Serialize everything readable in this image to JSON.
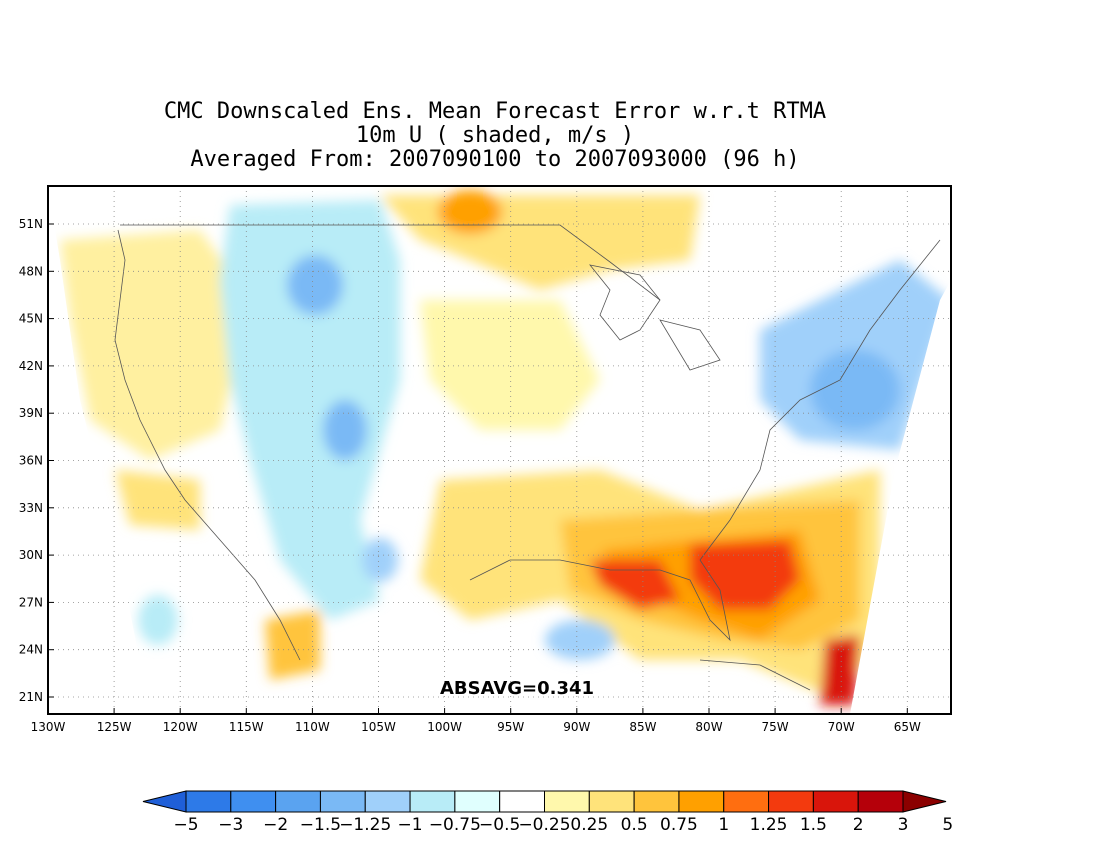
{
  "titles": {
    "line1": "CMC Downscaled Ens. Mean Forecast Error w.r.t RTMA",
    "line2": "10m U ( shaded, m/s )",
    "line3": "Averaged From: 2007090100 to 2007093000 (96 h)"
  },
  "annotation": "ABSAVG=0.341",
  "lat_labels": [
    "51N",
    "48N",
    "45N",
    "42N",
    "39N",
    "36N",
    "33N",
    "30N",
    "27N",
    "24N",
    "21N"
  ],
  "lon_labels": [
    "130W",
    "125W",
    "120W",
    "115W",
    "110W",
    "105W",
    "100W",
    "95W",
    "90W",
    "85W",
    "80W",
    "75W",
    "70W",
    "65W"
  ],
  "colorbar": {
    "labels": [
      "−5",
      "−3",
      "−2",
      "−1.5",
      "−1.25",
      "−1",
      "−0.75",
      "−0.5",
      "−0.25",
      "0.25",
      "0.5",
      "0.75",
      "1",
      "1.25",
      "1.5",
      "2",
      "3",
      "5"
    ],
    "colors": [
      "#1f5fd8",
      "#2d7ae8",
      "#3f8ff0",
      "#5aa3f0",
      "#7ab9f5",
      "#a0d0fa",
      "#b8ecf7",
      "#e0fffe",
      "#ffffff",
      "#fff8ac",
      "#ffe37a",
      "#ffc43c",
      "#ffa000",
      "#ff6e10",
      "#f33a0e",
      "#d9150b",
      "#b5000a",
      "#8b0000"
    ]
  },
  "chart_data": {
    "type": "heatmap",
    "title": "CMC Downscaled Ens. Mean Forecast Error w.r.t RTMA",
    "variable": "10m U ( shaded, m/s )",
    "xlim": [
      -130,
      -62
    ],
    "ylim": [
      20,
      53
    ],
    "grid": true,
    "abs_avg": 0.341,
    "regions": [
      {
        "lon": -79,
        "lat": 29.5,
        "value": 1.5
      },
      {
        "lon": -85,
        "lat": 28,
        "value": 1.5
      },
      {
        "lon": -69,
        "lat": 22,
        "value": 2
      },
      {
        "lon": -97,
        "lat": 52,
        "value": 1.25
      },
      {
        "lon": -76,
        "lat": 42,
        "value": -1
      },
      {
        "lon": -110,
        "lat": 47.5,
        "value": -1
      },
      {
        "lon": -108,
        "lat": 38,
        "value": -0.75
      }
    ]
  }
}
